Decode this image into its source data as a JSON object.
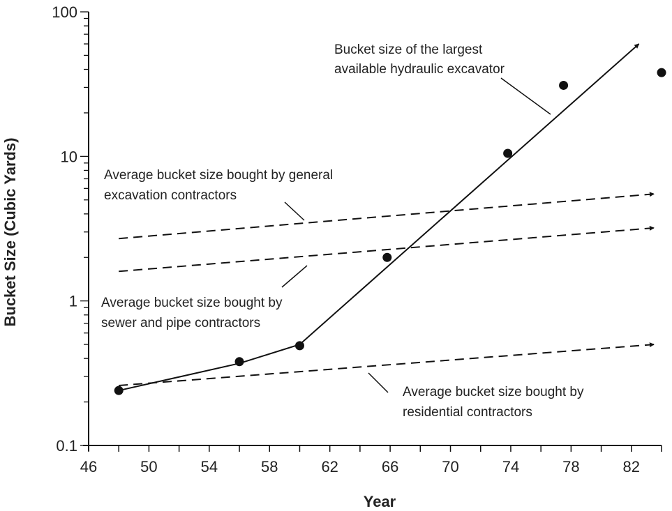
{
  "chart_data": {
    "type": "line",
    "xlabel": "Year",
    "ylabel": "Bucket Size (Cubic Yards)",
    "y_scale": "log",
    "xlim": [
      46,
      84
    ],
    "ylim": [
      0.1,
      100
    ],
    "x_ticks": [
      "46",
      "50",
      "54",
      "58",
      "62",
      "66",
      "70",
      "74",
      "78",
      "82"
    ],
    "y_ticks": [
      "0.1",
      "1",
      "10",
      "100"
    ],
    "grid": false,
    "series": [
      {
        "key": "largest",
        "style": "solid",
        "line": [
          [
            48,
            0.24
          ],
          [
            56,
            0.37
          ],
          [
            60,
            0.5
          ],
          [
            82.5,
            60
          ]
        ],
        "arrow": true
      },
      {
        "key": "general",
        "style": "dashed",
        "line": [
          [
            48,
            2.7
          ],
          [
            83.5,
            5.5
          ]
        ],
        "arrow": true
      },
      {
        "key": "sewer",
        "style": "dashed",
        "line": [
          [
            48,
            1.6
          ],
          [
            83.5,
            3.2
          ]
        ],
        "arrow": true
      },
      {
        "key": "residential",
        "style": "dashed",
        "line": [
          [
            48,
            0.26
          ],
          [
            83.5,
            0.5
          ]
        ],
        "arrow": true
      }
    ],
    "points": [
      {
        "x": 48,
        "y": 0.24
      },
      {
        "x": 56,
        "y": 0.38
      },
      {
        "x": 60,
        "y": 0.49
      },
      {
        "x": 65.8,
        "y": 2.0
      },
      {
        "x": 73.8,
        "y": 10.5
      },
      {
        "x": 77.5,
        "y": 31
      },
      {
        "x": 84,
        "y": 38
      }
    ],
    "annotations": [
      {
        "key": "largest",
        "lines": [
          "Bucket size of the largest",
          "available hydraulic excavator"
        ]
      },
      {
        "key": "general",
        "lines": [
          "Average bucket size bought by general",
          "excavation contractors"
        ]
      },
      {
        "key": "sewer",
        "lines": [
          "Average bucket size bought by",
          "sewer and pipe contractors"
        ]
      },
      {
        "key": "residential",
        "lines": [
          "Average bucket size bought by",
          "residential contractors"
        ]
      }
    ]
  }
}
